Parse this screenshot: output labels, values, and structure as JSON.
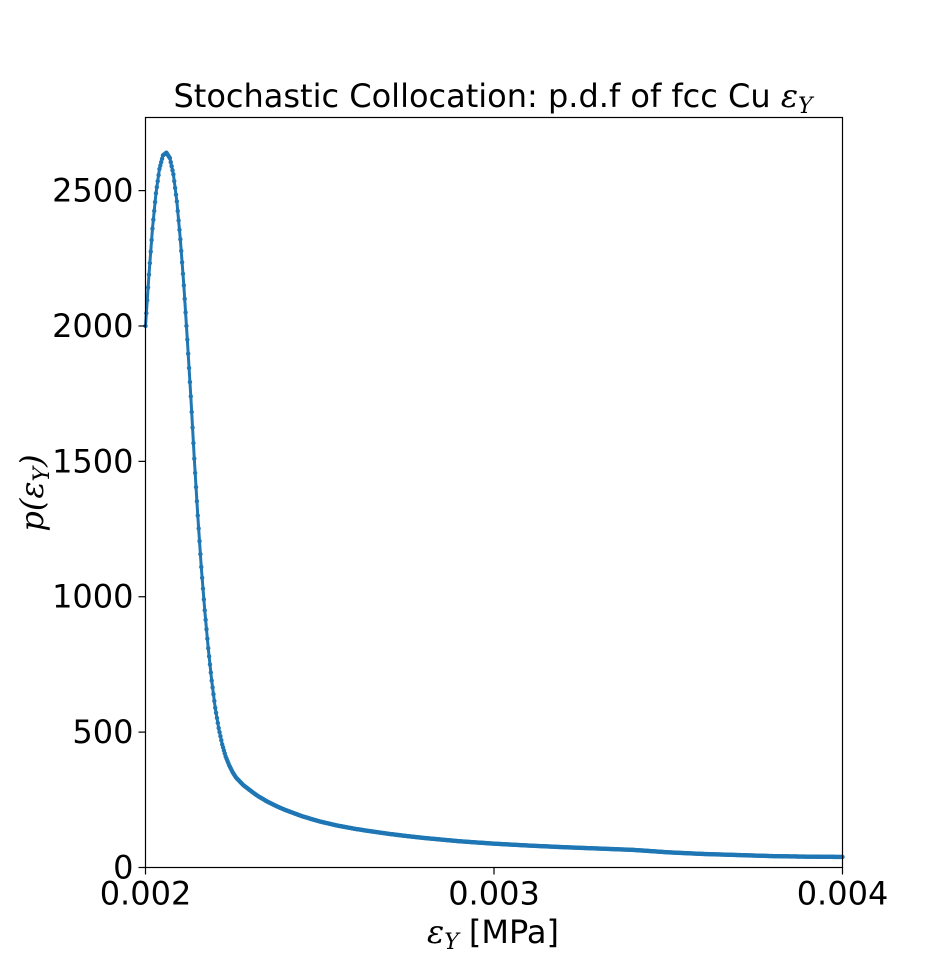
{
  "chart_data": {
    "type": "scatter",
    "title": {
      "prefix": "Stochastic Collocation: p.d.f of fcc Cu ",
      "symbol": "ε",
      "subscript": "Y"
    },
    "xlabel": {
      "symbol": "ε",
      "subscript": "Y",
      "suffix": " [MPa]"
    },
    "ylabel": {
      "prefix": "p(",
      "symbol": "ε",
      "subscript": "Y",
      "suffix": ")"
    },
    "xlim": [
      0.002,
      0.004
    ],
    "ylim": [
      0,
      2770
    ],
    "xticks": [
      {
        "value": 0.002,
        "label": "0.002"
      },
      {
        "value": 0.003,
        "label": "0.003"
      },
      {
        "value": 0.004,
        "label": "0.004"
      }
    ],
    "yticks": [
      {
        "value": 0,
        "label": "0"
      },
      {
        "value": 500,
        "label": "500"
      },
      {
        "value": 1000,
        "label": "1000"
      },
      {
        "value": 1500,
        "label": "1500"
      },
      {
        "value": 2000,
        "label": "2000"
      },
      {
        "value": 2500,
        "label": "2500"
      }
    ],
    "grid": false,
    "legend": "none",
    "series": [
      {
        "color": "#1f77b4",
        "x": [
          0.002,
          0.00201,
          0.00202,
          0.00203,
          0.00204,
          0.00205,
          0.00206,
          0.00207,
          0.00208,
          0.00209,
          0.0021,
          0.00211,
          0.00212,
          0.00213,
          0.00214,
          0.00215,
          0.00216,
          0.00217,
          0.00218,
          0.00219,
          0.0022,
          0.00221,
          0.00222,
          0.00223,
          0.00224,
          0.00225,
          0.00226,
          0.00228,
          0.0023,
          0.00232,
          0.00235,
          0.00238,
          0.0024,
          0.00245,
          0.0025,
          0.00255,
          0.0026,
          0.00265,
          0.0027,
          0.00275,
          0.0028,
          0.0029,
          0.003,
          0.0031,
          0.0032,
          0.0033,
          0.0034,
          0.0035,
          0.0036,
          0.0037,
          0.0038,
          0.0039,
          0.004
        ],
        "y": [
          2000,
          2190,
          2360,
          2490,
          2580,
          2630,
          2640,
          2620,
          2560,
          2460,
          2320,
          2150,
          1950,
          1740,
          1510,
          1300,
          1110,
          950,
          810,
          690,
          590,
          515,
          455,
          410,
          378,
          352,
          332,
          305,
          285,
          266,
          243,
          224,
          213,
          189,
          170,
          155,
          143,
          133,
          124,
          116,
          109,
          97,
          88,
          81,
          75,
          70,
          65,
          56,
          50,
          46,
          42,
          40,
          39
        ]
      }
    ]
  }
}
